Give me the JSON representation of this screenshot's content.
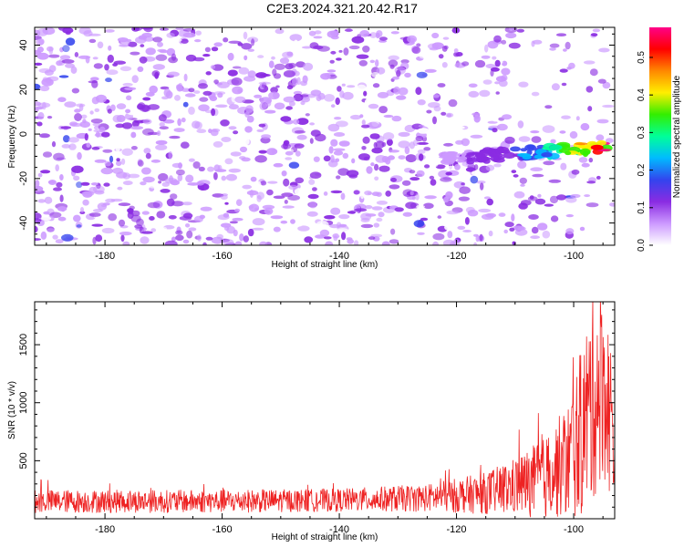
{
  "chart_data": [
    {
      "type": "heatmap",
      "title": "C2E3.2024.321.20.42.R17",
      "xlabel": "Height of straight line (km)",
      "ylabel": "Frequency (Hz)",
      "xlim": [
        -192,
        -93
      ],
      "ylim": [
        -50,
        48
      ],
      "xticks": [
        -180,
        -160,
        -140,
        -120,
        -100
      ],
      "yticks": [
        -40,
        -20,
        0,
        20,
        40
      ],
      "colorbar": {
        "label": "Normalized spectral amplitude",
        "range": [
          0.0,
          0.58
        ],
        "ticks": [
          "0.0",
          "0.1",
          "0.2",
          "0.3",
          "0.4",
          "0.5"
        ],
        "colors": [
          "#ffffff",
          "#cc99ff",
          "#8a2be2",
          "#3344ee",
          "#00bbff",
          "#00ff99",
          "#33ee00",
          "#ffee00",
          "#ff8800",
          "#ff0000",
          "#ff0088"
        ]
      },
      "features": {
        "noise_background": "purple speckle, amplitude 0.05-0.15",
        "signal_band": {
          "x_start": -122,
          "x_end": -94,
          "frequency_start": -11,
          "frequency_end": -6,
          "peak_amplitude": 0.55,
          "peak_x": -96
        }
      }
    },
    {
      "type": "line",
      "xlabel": "Height of straight line (km)",
      "ylabel": "SNR (10 * v/v)",
      "xlim": [
        -192,
        -93
      ],
      "ylim": [
        0,
        1870
      ],
      "xticks": [
        -180,
        -160,
        -140,
        -120,
        -100
      ],
      "yticks": [
        500,
        1000,
        1500
      ],
      "series": [
        {
          "color": "#ee2222",
          "envelope_x": [
            -192,
            -180,
            -160,
            -140,
            -125,
            -115,
            -110,
            -105,
            -101,
            -99,
            -97,
            -95,
            -93
          ],
          "envelope_mean": [
            150,
            150,
            150,
            160,
            180,
            220,
            280,
            350,
            500,
            700,
            1000,
            1200,
            700
          ],
          "envelope_amplitude": [
            100,
            100,
            100,
            100,
            120,
            180,
            250,
            350,
            500,
            700,
            900,
            850,
            600
          ]
        }
      ]
    }
  ]
}
